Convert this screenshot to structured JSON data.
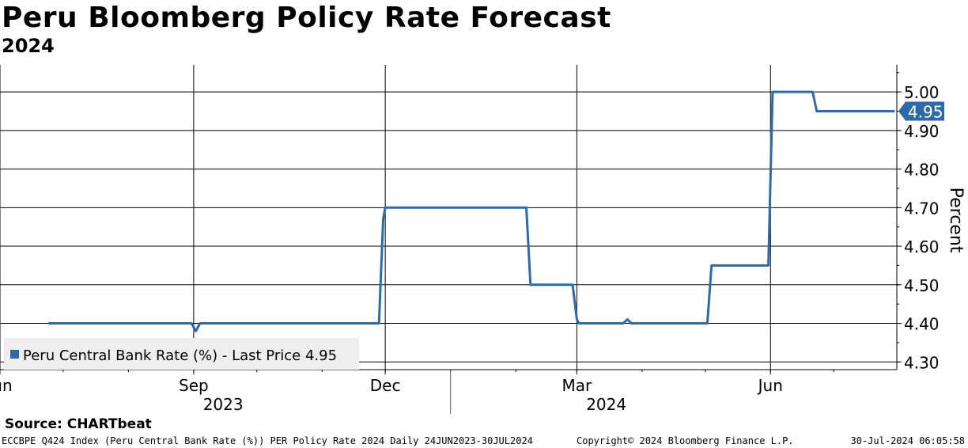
{
  "title": "Peru Bloomberg Policy Rate Forecast",
  "subtitle": "2024",
  "source": "Source:  CHARTbeat",
  "footer": {
    "left": "ECCBPE Q424 Index (Peru Central Bank Rate (%)) PER Policy Rate 2024  Daily 24JUN2023-30JUL2024",
    "mid": "Copyright© 2024 Bloomberg Finance L.P.",
    "right": "30-Jul-2024 06:05:58"
  },
  "colors": {
    "line": "#2e6aa8",
    "grid": "#000000"
  },
  "chart_data": {
    "type": "line",
    "ylabel": "Percent",
    "ylim": [
      4.28,
      5.07
    ],
    "y_ticks": [
      4.3,
      4.4,
      4.5,
      4.6,
      4.7,
      4.8,
      4.9,
      5.0
    ],
    "y_tick_labels": [
      "4.30",
      "4.40",
      "4.50",
      "4.60",
      "4.70",
      "4.80",
      "4.90",
      "5.00"
    ],
    "x_ticks": [
      {
        "label": "Jun",
        "date": "2023-06-01"
      },
      {
        "label": "Sep",
        "date": "2023-09-01"
      },
      {
        "label": "Dec",
        "date": "2023-12-01"
      },
      {
        "label": "Mar",
        "date": "2024-03-01"
      },
      {
        "label": "Jun",
        "date": "2024-06-01"
      }
    ],
    "year_labels": [
      {
        "label": "2023",
        "date": "2023-09-15"
      },
      {
        "label": "2024",
        "date": "2024-03-15"
      }
    ],
    "year_divider_date": "2024-01-01",
    "x_range": [
      "2023-06-01",
      "2024-07-31"
    ],
    "legend": "Peru Central Bank Rate (%) - Last Price 4.95",
    "legend_position": "bottom-left",
    "last_price_label": "4.95",
    "series": [
      {
        "name": "Peru Central Bank Rate (%)",
        "points": [
          [
            "2023-06-24",
            4.4
          ],
          [
            "2023-08-31",
            4.4
          ],
          [
            "2023-09-02",
            4.38
          ],
          [
            "2023-09-04",
            4.4
          ],
          [
            "2023-11-28",
            4.4
          ],
          [
            "2023-11-30",
            4.67
          ],
          [
            "2023-12-01",
            4.7
          ],
          [
            "2024-02-06",
            4.7
          ],
          [
            "2024-02-08",
            4.5
          ],
          [
            "2024-02-28",
            4.5
          ],
          [
            "2024-03-01",
            4.41
          ],
          [
            "2024-03-02",
            4.4
          ],
          [
            "2024-03-23",
            4.4
          ],
          [
            "2024-03-25",
            4.41
          ],
          [
            "2024-03-27",
            4.4
          ],
          [
            "2024-05-02",
            4.4
          ],
          [
            "2024-05-04",
            4.55
          ],
          [
            "2024-05-31",
            4.55
          ],
          [
            "2024-06-02",
            5.0
          ],
          [
            "2024-06-21",
            5.0
          ],
          [
            "2024-06-23",
            4.95
          ],
          [
            "2024-07-30",
            4.95
          ]
        ]
      }
    ]
  }
}
